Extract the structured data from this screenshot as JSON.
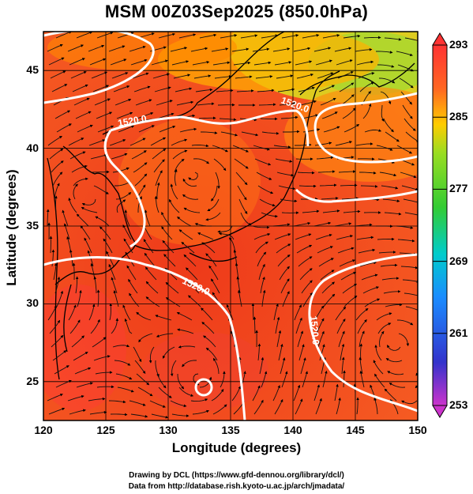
{
  "title": "MSM 00Z03Sep2025 (850.0hPa)",
  "x_axis": {
    "label": "Longitude (degrees)",
    "ticks": [
      "120",
      "125",
      "130",
      "135",
      "140",
      "145",
      "150"
    ],
    "range": [
      120,
      150
    ]
  },
  "y_axis": {
    "label": "Latitude  (degrees)",
    "ticks": [
      "25",
      "30",
      "35",
      "40",
      "45"
    ],
    "range": [
      22.5,
      47.5
    ]
  },
  "colorbar": {
    "ticks": [
      "293",
      "285",
      "277",
      "269",
      "261",
      "253"
    ],
    "min": 253,
    "max": 293
  },
  "contour_labels": [
    "1520.0",
    "1520.0",
    "1520.0",
    "1520.0"
  ],
  "credits": {
    "line1": "Drawing by DCL (https://www.gfd-dennou.org/library/dcl/)",
    "line2": "Data from http://database.rish.kyoto-u.ac.jp/arch/jmadata/"
  }
}
